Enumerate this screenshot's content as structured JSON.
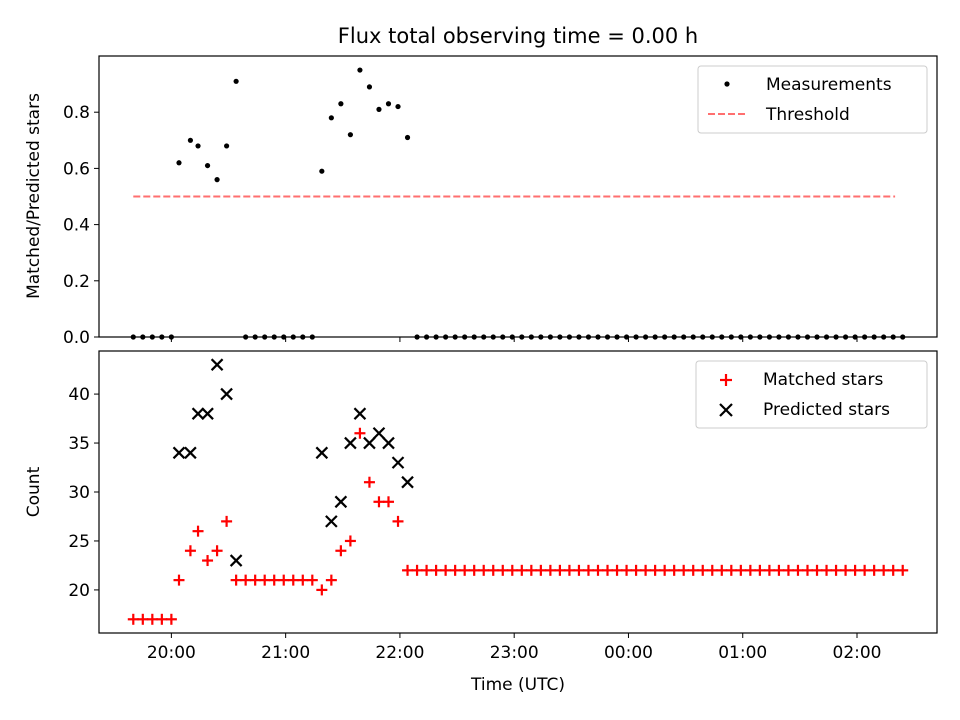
{
  "chart_data": [
    {
      "type": "scatter",
      "title": "Flux total observing time = 0.00 h",
      "xlabel": "",
      "ylabel": "Matched/Predicted stars",
      "ylim": [
        0,
        1.0
      ],
      "xlim": [
        "19:22",
        "02:42"
      ],
      "yticks": [
        "0.0",
        "0.2",
        "0.4",
        "0.6",
        "0.8"
      ],
      "xtick_values": [
        "20:00",
        "21:00",
        "22:00",
        "23:00",
        "00:00",
        "01:00",
        "02:00"
      ],
      "legend": {
        "position": "top-right",
        "entries": [
          "Measurements",
          "Threshold"
        ]
      },
      "series": [
        {
          "name": "Measurements",
          "marker": "dot",
          "color": "#000000",
          "points": [
            [
              "19:40",
              0.0
            ],
            [
              "19:45",
              0.0
            ],
            [
              "19:50",
              0.0
            ],
            [
              "19:55",
              0.0
            ],
            [
              "20:00",
              0.0
            ],
            [
              "20:04",
              0.62
            ],
            [
              "20:10",
              0.7
            ],
            [
              "20:14",
              0.68
            ],
            [
              "20:19",
              0.61
            ],
            [
              "20:24",
              0.56
            ],
            [
              "20:29",
              0.68
            ],
            [
              "20:34",
              0.91
            ],
            [
              "20:39",
              0.0
            ],
            [
              "20:44",
              0.0
            ],
            [
              "20:49",
              0.0
            ],
            [
              "20:54",
              0.0
            ],
            [
              "20:59",
              0.0
            ],
            [
              "21:04",
              0.0
            ],
            [
              "21:09",
              0.0
            ],
            [
              "21:14",
              0.0
            ],
            [
              "21:19",
              0.59
            ],
            [
              "21:24",
              0.78
            ],
            [
              "21:29",
              0.83
            ],
            [
              "21:34",
              0.72
            ],
            [
              "21:39",
              0.95
            ],
            [
              "21:44",
              0.89
            ],
            [
              "21:49",
              0.81
            ],
            [
              "21:54",
              0.83
            ],
            [
              "21:59",
              0.82
            ],
            [
              "22:04",
              0.71
            ],
            [
              "22:09",
              0.0
            ],
            [
              "22:14",
              0.0
            ],
            [
              "22:19",
              0.0
            ],
            [
              "22:24",
              0.0
            ],
            [
              "22:29",
              0.0
            ],
            [
              "22:34",
              0.0
            ],
            [
              "22:39",
              0.0
            ],
            [
              "22:44",
              0.0
            ],
            [
              "22:49",
              0.0
            ],
            [
              "22:54",
              0.0
            ],
            [
              "22:59",
              0.0
            ],
            [
              "23:04",
              0.0
            ],
            [
              "23:09",
              0.0
            ],
            [
              "23:14",
              0.0
            ],
            [
              "23:19",
              0.0
            ],
            [
              "23:24",
              0.0
            ],
            [
              "23:29",
              0.0
            ],
            [
              "23:34",
              0.0
            ],
            [
              "23:39",
              0.0
            ],
            [
              "23:44",
              0.0
            ],
            [
              "23:49",
              0.0
            ],
            [
              "23:54",
              0.0
            ],
            [
              "23:59",
              0.0
            ],
            [
              "00:04",
              0.0
            ],
            [
              "00:09",
              0.0
            ],
            [
              "00:14",
              0.0
            ],
            [
              "00:19",
              0.0
            ],
            [
              "00:24",
              0.0
            ],
            [
              "00:29",
              0.0
            ],
            [
              "00:34",
              0.0
            ],
            [
              "00:39",
              0.0
            ],
            [
              "00:44",
              0.0
            ],
            [
              "00:49",
              0.0
            ],
            [
              "00:54",
              0.0
            ],
            [
              "00:59",
              0.0
            ],
            [
              "01:04",
              0.0
            ],
            [
              "01:09",
              0.0
            ],
            [
              "01:14",
              0.0
            ],
            [
              "01:19",
              0.0
            ],
            [
              "01:24",
              0.0
            ],
            [
              "01:29",
              0.0
            ],
            [
              "01:34",
              0.0
            ],
            [
              "01:39",
              0.0
            ],
            [
              "01:44",
              0.0
            ],
            [
              "01:49",
              0.0
            ],
            [
              "01:54",
              0.0
            ],
            [
              "01:59",
              0.0
            ],
            [
              "02:04",
              0.0
            ],
            [
              "02:09",
              0.0
            ],
            [
              "02:14",
              0.0
            ],
            [
              "02:19",
              0.0
            ],
            [
              "02:24",
              0.0
            ]
          ]
        },
        {
          "name": "Threshold",
          "type": "line",
          "style": "dashed",
          "color": "#ff6f6f",
          "x": [
            "19:40",
            "02:20"
          ],
          "y": [
            0.5,
            0.5
          ]
        }
      ]
    },
    {
      "type": "scatter",
      "xlabel": "Time (UTC)",
      "ylabel": "Count",
      "ylim": [
        15.6,
        44.4
      ],
      "xlim": [
        "19:22",
        "02:42"
      ],
      "yticks": [
        "20",
        "25",
        "30",
        "35",
        "40"
      ],
      "xticks": [
        "20:00",
        "21:00",
        "22:00",
        "23:00",
        "00:00",
        "01:00",
        "02:00"
      ],
      "legend": {
        "position": "top-right",
        "entries": [
          "Matched stars",
          "Predicted stars"
        ]
      },
      "series": [
        {
          "name": "Matched stars",
          "marker": "plus",
          "color": "#ff0000",
          "points": [
            [
              "19:40",
              17
            ],
            [
              "19:45",
              17
            ],
            [
              "19:50",
              17
            ],
            [
              "19:55",
              17
            ],
            [
              "20:00",
              17
            ],
            [
              "20:04",
              21
            ],
            [
              "20:10",
              24
            ],
            [
              "20:14",
              26
            ],
            [
              "20:19",
              23
            ],
            [
              "20:24",
              24
            ],
            [
              "20:29",
              27
            ],
            [
              "20:34",
              21
            ],
            [
              "20:39",
              21
            ],
            [
              "20:44",
              21
            ],
            [
              "20:49",
              21
            ],
            [
              "20:54",
              21
            ],
            [
              "20:59",
              21
            ],
            [
              "21:04",
              21
            ],
            [
              "21:09",
              21
            ],
            [
              "21:14",
              21
            ],
            [
              "21:19",
              20
            ],
            [
              "21:24",
              21
            ],
            [
              "21:29",
              24
            ],
            [
              "21:34",
              25
            ],
            [
              "21:39",
              36
            ],
            [
              "21:44",
              31
            ],
            [
              "21:49",
              29
            ],
            [
              "21:54",
              29
            ],
            [
              "21:59",
              27
            ],
            [
              "22:04",
              22
            ],
            [
              "22:09",
              22
            ],
            [
              "22:14",
              22
            ],
            [
              "22:19",
              22
            ],
            [
              "22:24",
              22
            ],
            [
              "22:29",
              22
            ],
            [
              "22:34",
              22
            ],
            [
              "22:39",
              22
            ],
            [
              "22:44",
              22
            ],
            [
              "22:49",
              22
            ],
            [
              "22:54",
              22
            ],
            [
              "22:59",
              22
            ],
            [
              "23:04",
              22
            ],
            [
              "23:09",
              22
            ],
            [
              "23:14",
              22
            ],
            [
              "23:19",
              22
            ],
            [
              "23:24",
              22
            ],
            [
              "23:29",
              22
            ],
            [
              "23:34",
              22
            ],
            [
              "23:39",
              22
            ],
            [
              "23:44",
              22
            ],
            [
              "23:49",
              22
            ],
            [
              "23:54",
              22
            ],
            [
              "23:59",
              22
            ],
            [
              "00:04",
              22
            ],
            [
              "00:09",
              22
            ],
            [
              "00:14",
              22
            ],
            [
              "00:19",
              22
            ],
            [
              "00:24",
              22
            ],
            [
              "00:29",
              22
            ],
            [
              "00:34",
              22
            ],
            [
              "00:39",
              22
            ],
            [
              "00:44",
              22
            ],
            [
              "00:49",
              22
            ],
            [
              "00:54",
              22
            ],
            [
              "00:59",
              22
            ],
            [
              "01:04",
              22
            ],
            [
              "01:09",
              22
            ],
            [
              "01:14",
              22
            ],
            [
              "01:19",
              22
            ],
            [
              "01:24",
              22
            ],
            [
              "01:29",
              22
            ],
            [
              "01:34",
              22
            ],
            [
              "01:39",
              22
            ],
            [
              "01:44",
              22
            ],
            [
              "01:49",
              22
            ],
            [
              "01:54",
              22
            ],
            [
              "01:59",
              22
            ],
            [
              "02:04",
              22
            ],
            [
              "02:09",
              22
            ],
            [
              "02:14",
              22
            ],
            [
              "02:19",
              22
            ],
            [
              "02:24",
              22
            ]
          ]
        },
        {
          "name": "Predicted stars",
          "marker": "x",
          "color": "#000000",
          "points": [
            [
              "20:04",
              34
            ],
            [
              "20:10",
              34
            ],
            [
              "20:14",
              38
            ],
            [
              "20:19",
              38
            ],
            [
              "20:24",
              43
            ],
            [
              "20:29",
              40
            ],
            [
              "20:34",
              23
            ],
            [
              "21:19",
              34
            ],
            [
              "21:24",
              27
            ],
            [
              "21:29",
              29
            ],
            [
              "21:34",
              35
            ],
            [
              "21:39",
              38
            ],
            [
              "21:44",
              35
            ],
            [
              "21:49",
              36
            ],
            [
              "21:54",
              35
            ],
            [
              "21:59",
              33
            ],
            [
              "22:04",
              31
            ]
          ]
        }
      ]
    }
  ]
}
